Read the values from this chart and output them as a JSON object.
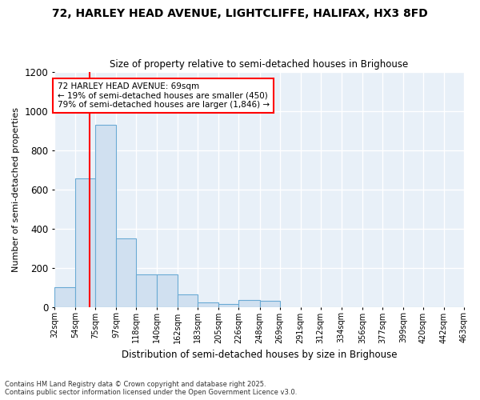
{
  "title1": "72, HARLEY HEAD AVENUE, LIGHTCLIFFE, HALIFAX, HX3 8FD",
  "title2": "Size of property relative to semi-detached houses in Brighouse",
  "xlabel": "Distribution of semi-detached houses by size in Brighouse",
  "ylabel": "Number of semi-detached properties",
  "footer1": "Contains HM Land Registry data © Crown copyright and database right 2025.",
  "footer2": "Contains public sector information licensed under the Open Government Licence v3.0.",
  "annotation_line1": "72 HARLEY HEAD AVENUE: 69sqm",
  "annotation_line2": "← 19% of semi-detached houses are smaller (450)",
  "annotation_line3": "79% of semi-detached houses are larger (1,846) →",
  "bar_color": "#d0e0f0",
  "bar_edge_color": "#6aaad4",
  "red_line_x": 69,
  "bins": [
    32,
    54,
    75,
    97,
    118,
    140,
    162,
    183,
    205,
    226,
    248,
    269,
    291,
    312,
    334,
    356,
    377,
    399,
    420,
    442,
    463
  ],
  "counts": [
    100,
    655,
    930,
    348,
    165,
    165,
    65,
    22,
    15,
    35,
    30,
    0,
    0,
    0,
    0,
    0,
    0,
    0,
    0,
    0
  ],
  "ylim": [
    0,
    1200
  ],
  "yticks": [
    0,
    200,
    400,
    600,
    800,
    1000,
    1200
  ],
  "fig_bg_color": "#ffffff",
  "plot_bg_color": "#e8f0f8",
  "grid_color": "#ffffff"
}
